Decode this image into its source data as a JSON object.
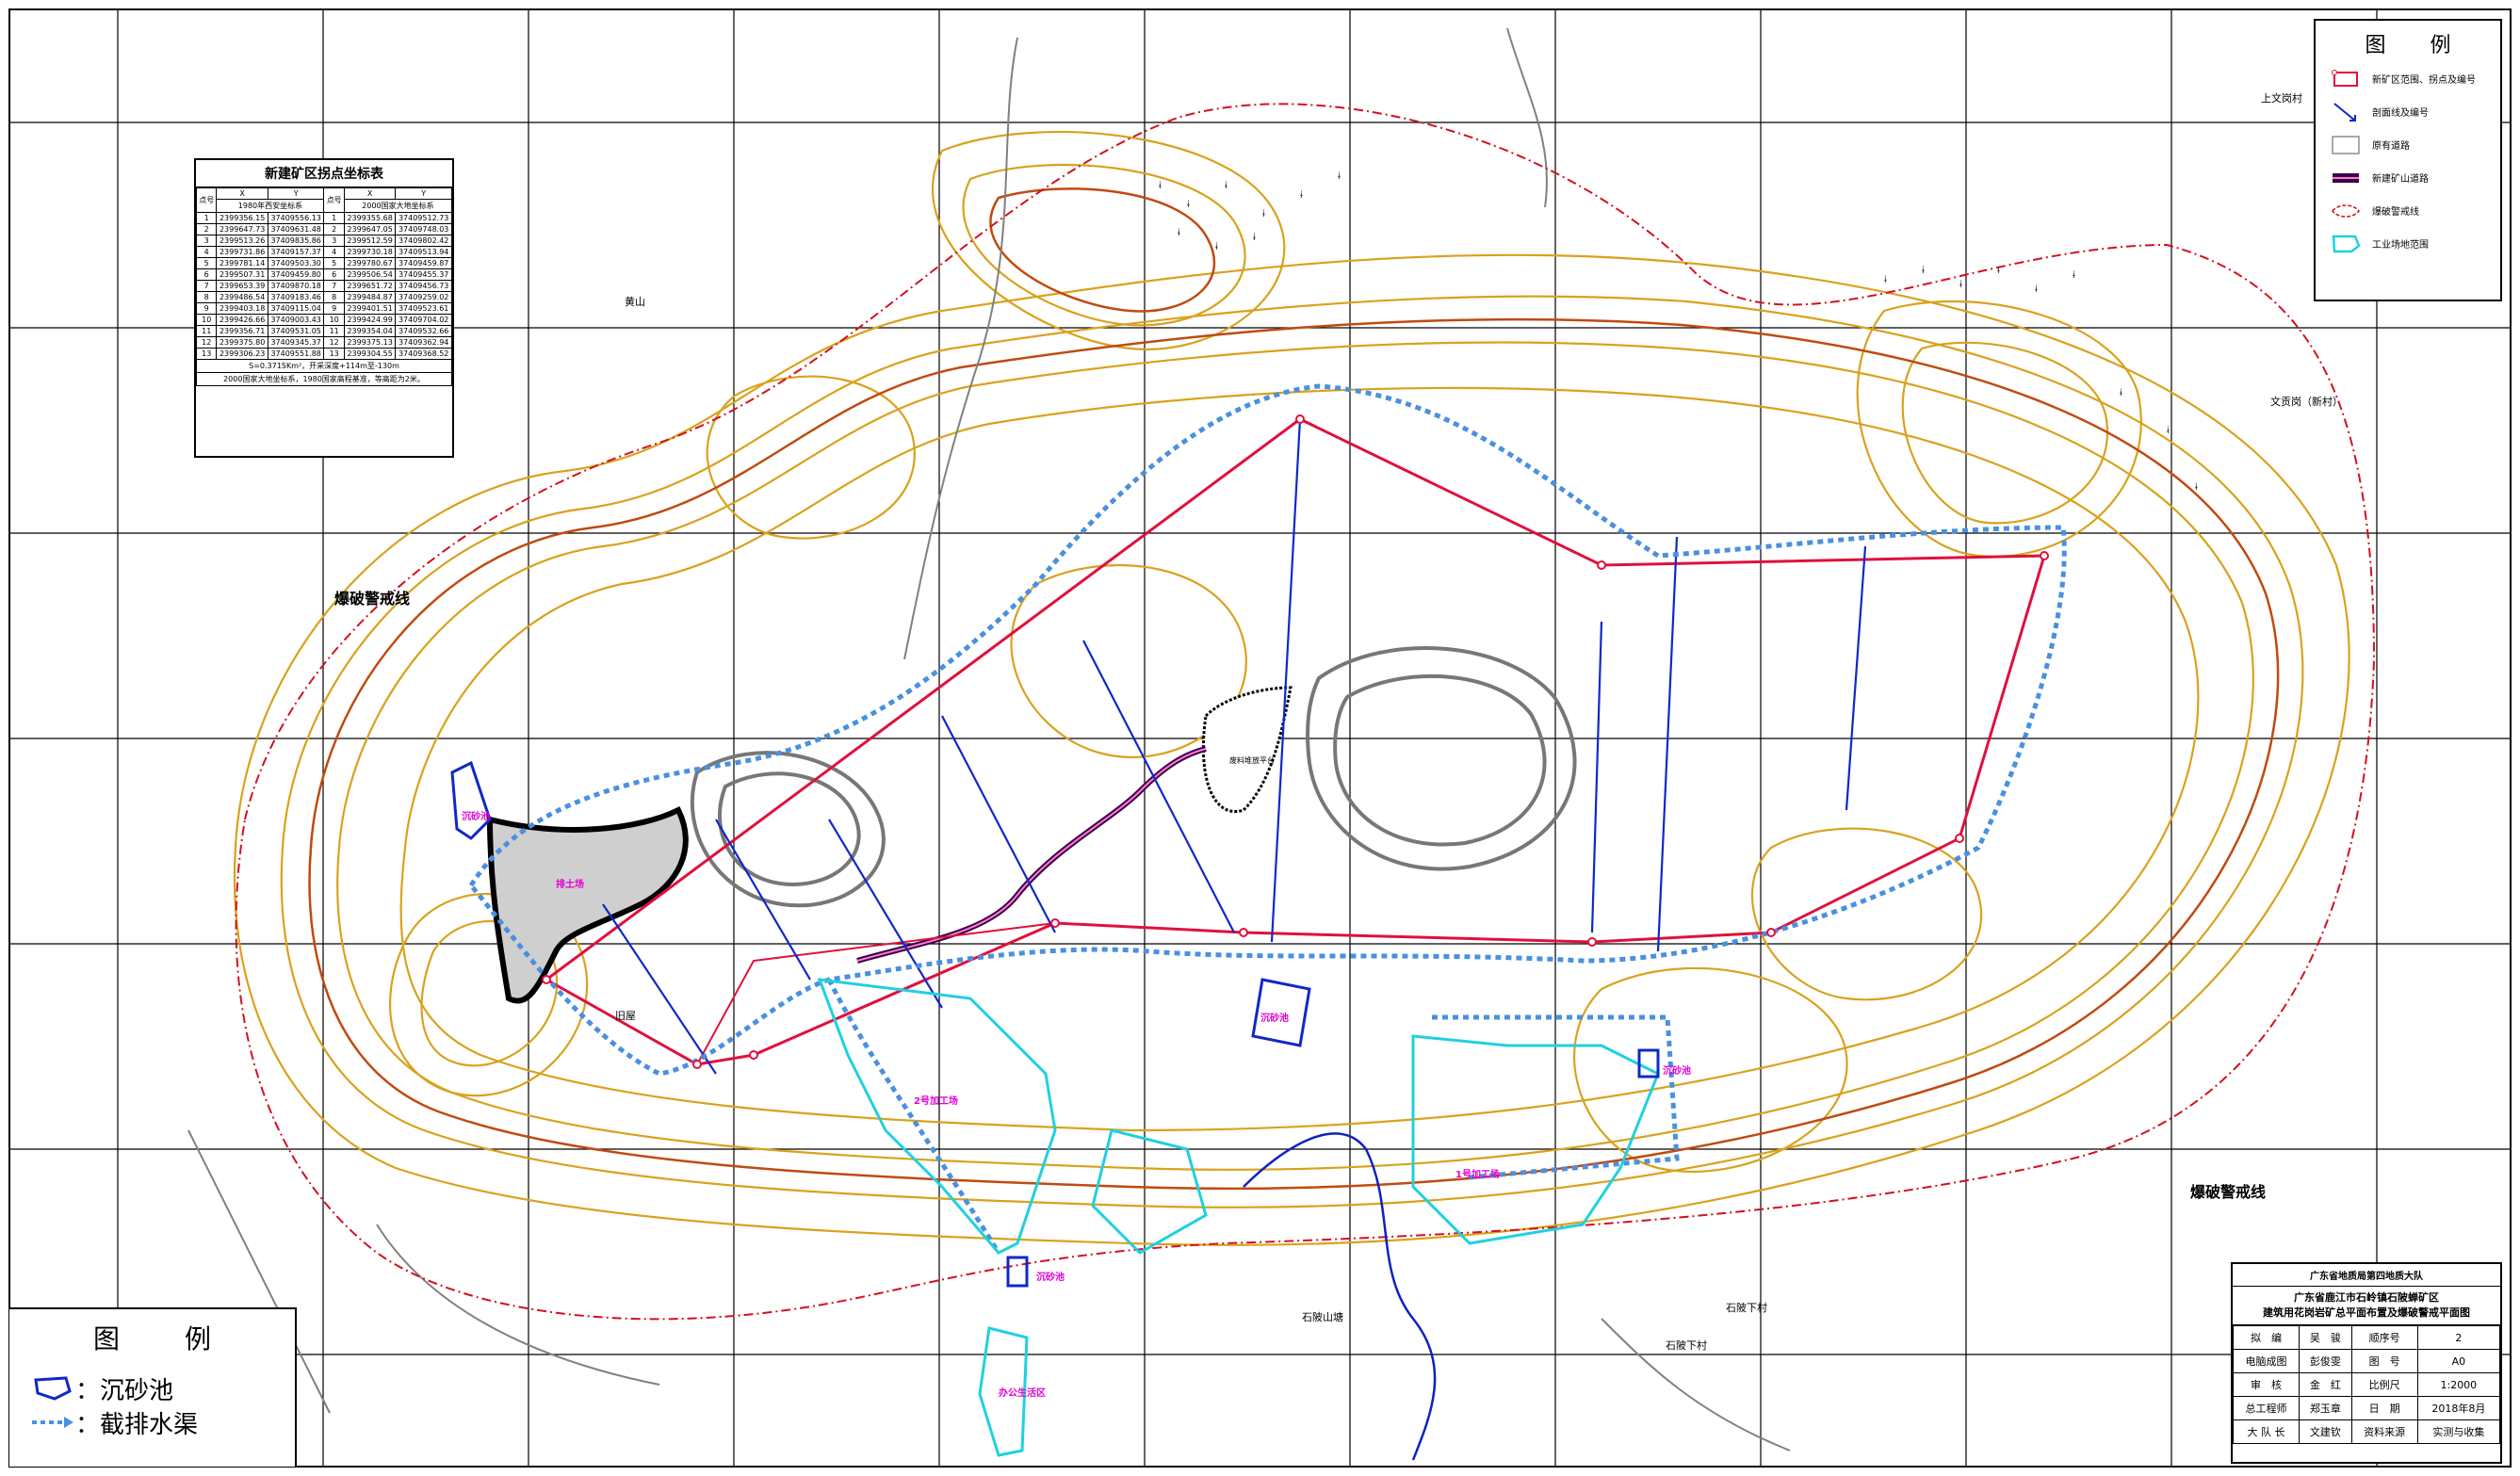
{
  "coord_table": {
    "title": "新建矿区拐点坐标表",
    "col_x": "X",
    "col_y": "Y",
    "col_no": "点号",
    "sys_1980": "1980年西安坐标系",
    "sys_2000": "2000国家大地坐标系",
    "rows": [
      [
        "1",
        "2399356.15",
        "37409556.13",
        "1",
        "2399355.68",
        "37409512.73"
      ],
      [
        "2",
        "2399647.73",
        "37409631.48",
        "2",
        "2399647.05",
        "37409748.03"
      ],
      [
        "3",
        "2399513.26",
        "37409835.86",
        "3",
        "2399512.59",
        "37409802.42"
      ],
      [
        "4",
        "2399731.86",
        "37409157.37",
        "4",
        "2399730.18",
        "37409513.94"
      ],
      [
        "5",
        "2399781.14",
        "37409503.30",
        "5",
        "2399780.67",
        "37409459.87"
      ],
      [
        "6",
        "2399507.31",
        "37409459.80",
        "6",
        "2399506.54",
        "37409455.37"
      ],
      [
        "7",
        "2399653.39",
        "37409870.18",
        "7",
        "2399651.72",
        "37409456.73"
      ],
      [
        "8",
        "2399486.54",
        "37409183.46",
        "8",
        "2399484.87",
        "37409259.02"
      ],
      [
        "9",
        "2399403.18",
        "37409115.04",
        "9",
        "2399401.51",
        "37409523.61"
      ],
      [
        "10",
        "2399426.66",
        "37409003.43",
        "10",
        "2399424.99",
        "37409704.02"
      ],
      [
        "11",
        "2399356.71",
        "37409531.05",
        "11",
        "2399354.04",
        "37409532.66"
      ],
      [
        "12",
        "2399375.80",
        "37409345.37",
        "12",
        "2399375.13",
        "37409362.94"
      ],
      [
        "13",
        "2399306.23",
        "37409551.88",
        "13",
        "2399304.55",
        "37409368.52"
      ]
    ],
    "note1": "S=0.3715Km²，开采深度+114m至-130m",
    "note2": "2000国家大地坐标系，1980国家高程基准，等高距为2米。"
  },
  "legend_top": {
    "title": "图 例",
    "items": [
      {
        "label": "新矿区范围、拐点及编号",
        "icon": "red-boundary-icon"
      },
      {
        "label": "剖面线及编号",
        "icon": "section-line-icon"
      },
      {
        "label": "原有道路",
        "icon": "road-icon"
      },
      {
        "label": "新建矿山道路",
        "icon": "mine-road-icon"
      },
      {
        "label": "爆破警戒线",
        "icon": "blast-line-icon"
      },
      {
        "label": "工业场地范围",
        "icon": "industrial-site-icon"
      }
    ]
  },
  "legend_bottom": {
    "title": "图 例",
    "items": [
      {
        "label": "：沉砂池",
        "icon": "settling-pond-icon"
      },
      {
        "label": "：截排水渠",
        "icon": "drainage-ditch-icon"
      }
    ]
  },
  "title_block": {
    "org": "广东省地质局第四地质大队",
    "title_line1": "广东省鹿江市石岭镇石陂蝉矿区",
    "title_line2": "建筑用花岗岩矿总平面布置及爆破警戒平面图",
    "rows": [
      [
        "拟　编",
        "吴　骏",
        "顺序号",
        "2"
      ],
      [
        "电脑成图",
        "彭俊雯",
        "图　号",
        "A0"
      ],
      [
        "审　核",
        "金　红",
        "比例尺",
        "1:2000"
      ],
      [
        "总工程师",
        "郑玉章",
        "日　期",
        "2018年8月"
      ],
      [
        "大 队 长",
        "文建钦",
        "资料来源",
        "实测与收集"
      ]
    ]
  },
  "map_labels": {
    "blast_line_left": "爆破警戒线",
    "blast_line_right": "爆破警戒线",
    "settling_pond": "沉砂池",
    "dump_site": "排土场",
    "processing_1": "1号加工场",
    "processing_2": "2号加工场",
    "office_area": "办公生活区",
    "waste_platform": "废料堆放平台",
    "place_top": "上文岗村",
    "place_right": "文贡岗（新村）",
    "place_bottom1": "石陂山塘",
    "place_bottom2": "石陂下村",
    "place_bottom3": "石陂下村",
    "place_left": "黄山",
    "place_village": "旧屋"
  },
  "colors": {
    "contour": "#d9a21c",
    "contour_index": "#c04a10",
    "boundary": "#e0103c",
    "blast_line": "#d41020",
    "section": "#1028c8",
    "drainage": "#4a90e0",
    "industrial": "#20d0e0",
    "road": "#808080",
    "pink_label": "#e000d0"
  }
}
